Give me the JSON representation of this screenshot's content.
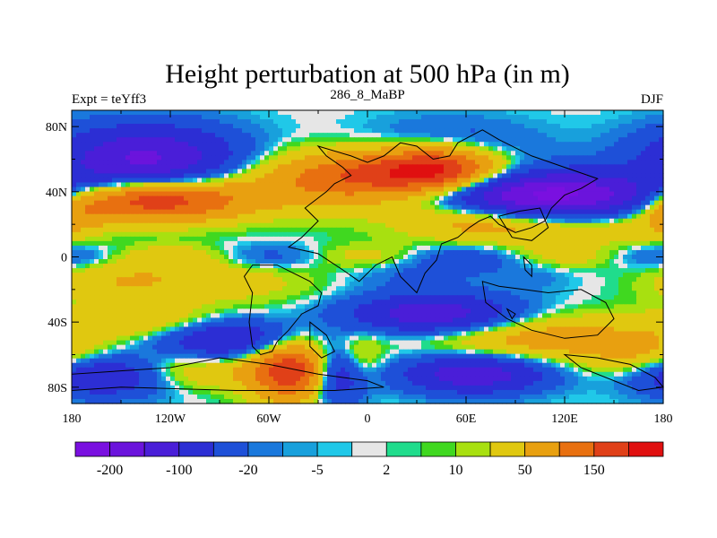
{
  "chart_data": {
    "type": "heatmap",
    "title": "Height perturbation at 500 hPa (in m)",
    "left_label": "Expt = teYff3",
    "center_label": "286_8_MaBP",
    "right_label": "DJF",
    "x_tick_labels": [
      "180",
      "120W",
      "60W",
      "0",
      "60E",
      "120E",
      "180"
    ],
    "x_tick_values": [
      -180,
      -120,
      -60,
      0,
      60,
      120,
      180
    ],
    "y_tick_labels": [
      "80N",
      "40N",
      "0",
      "40S",
      "80S"
    ],
    "y_tick_values": [
      80,
      40,
      0,
      -40,
      -80
    ],
    "xlim": [
      -180,
      180
    ],
    "ylim": [
      -90,
      90
    ],
    "colorbar": {
      "levels": [
        -200,
        -150,
        -100,
        -50,
        -20,
        -10,
        -5,
        -2,
        2,
        5,
        10,
        20,
        50,
        100,
        150,
        200
      ],
      "labels": [
        "-200",
        "-100",
        "-20",
        "-5",
        "2",
        "10",
        "50",
        "150"
      ],
      "colors": [
        "#7a10e0",
        "#6b14dc",
        "#4a1ed8",
        "#2c2ed4",
        "#1e50d8",
        "#1a78dc",
        "#18a0dc",
        "#20c8e8",
        "#e6e6e6",
        "#20dc8c",
        "#40d820",
        "#a8e010",
        "#e0c810",
        "#e8a010",
        "#e87010",
        "#e04018",
        "#e01010"
      ]
    }
  }
}
